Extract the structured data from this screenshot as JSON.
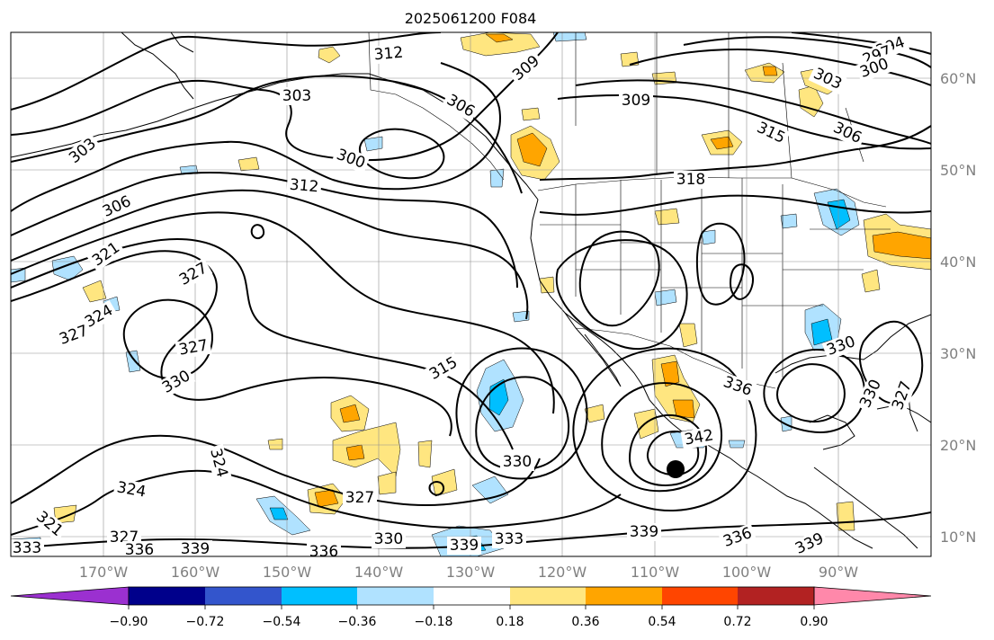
{
  "title": "2025061200 F084",
  "map": {
    "lat_labels": [
      "60°N",
      "50°N",
      "40°N",
      "30°N",
      "20°N",
      "10°N"
    ],
    "lon_labels": [
      "170°W",
      "160°W",
      "150°W",
      "140°W",
      "130°W",
      "120°W",
      "110°W",
      "100°W",
      "90°W"
    ],
    "contour_labels": [
      {
        "text": "312",
        "rot": -5
      },
      {
        "text": "309",
        "rot": -40
      },
      {
        "text": "303",
        "rot": 0
      },
      {
        "text": "306",
        "rot": 30
      },
      {
        "text": "309",
        "rot": 0
      },
      {
        "text": "303",
        "rot": 25
      },
      {
        "text": "294",
        "rot": -20
      },
      {
        "text": "297",
        "rot": -20
      },
      {
        "text": "300",
        "rot": -20
      },
      {
        "text": "315",
        "rot": 25
      },
      {
        "text": "306",
        "rot": 25
      },
      {
        "text": "303",
        "rot": -40
      },
      {
        "text": "300",
        "rot": 20
      },
      {
        "text": "312",
        "rot": 5
      },
      {
        "text": "318",
        "rot": 0
      },
      {
        "text": "306",
        "rot": -25
      },
      {
        "text": "321",
        "rot": -35
      },
      {
        "text": "327",
        "rot": -30
      },
      {
        "text": "324",
        "rot": -30
      },
      {
        "text": "327",
        "rot": -20
      },
      {
        "text": "327",
        "rot": -10
      },
      {
        "text": "330",
        "rot": -30
      },
      {
        "text": "315",
        "rot": -30
      },
      {
        "text": "336",
        "rot": 20
      },
      {
        "text": "330",
        "rot": -20
      },
      {
        "text": "330",
        "rot": -65
      },
      {
        "text": "327",
        "rot": -70
      },
      {
        "text": "342",
        "rot": -10
      },
      {
        "text": "330",
        "rot": 0
      },
      {
        "text": "327",
        "rot": 0
      },
      {
        "text": "324",
        "rot": 10
      },
      {
        "text": "324",
        "rot": 75
      },
      {
        "text": "321",
        "rot": 40
      },
      {
        "text": "327",
        "rot": 0
      },
      {
        "text": "336",
        "rot": 0
      },
      {
        "text": "339",
        "rot": 0
      },
      {
        "text": "333",
        "rot": 0
      },
      {
        "text": "336",
        "rot": 0
      },
      {
        "text": "330",
        "rot": 0
      },
      {
        "text": "339",
        "rot": 0
      },
      {
        "text": "333",
        "rot": 0
      },
      {
        "text": "339",
        "rot": 0
      },
      {
        "text": "336",
        "rot": -20
      },
      {
        "text": "339",
        "rot": -25
      }
    ],
    "contour_level_interval": 3,
    "marker": "filled-circle",
    "grid": true
  },
  "colorbar": {
    "ticks": [
      "−0.90",
      "−0.72",
      "−0.54",
      "−0.36",
      "−0.18",
      "0.18",
      "0.36",
      "0.54",
      "0.72",
      "0.90"
    ],
    "colors": [
      "#9b30d0",
      "#00008b",
      "#3355cc",
      "#00bfff",
      "#b0e2ff",
      "#ffffff",
      "#ffe680",
      "#ffa500",
      "#ff4500",
      "#b22222",
      "#ff88aa"
    ],
    "extend": "both"
  }
}
